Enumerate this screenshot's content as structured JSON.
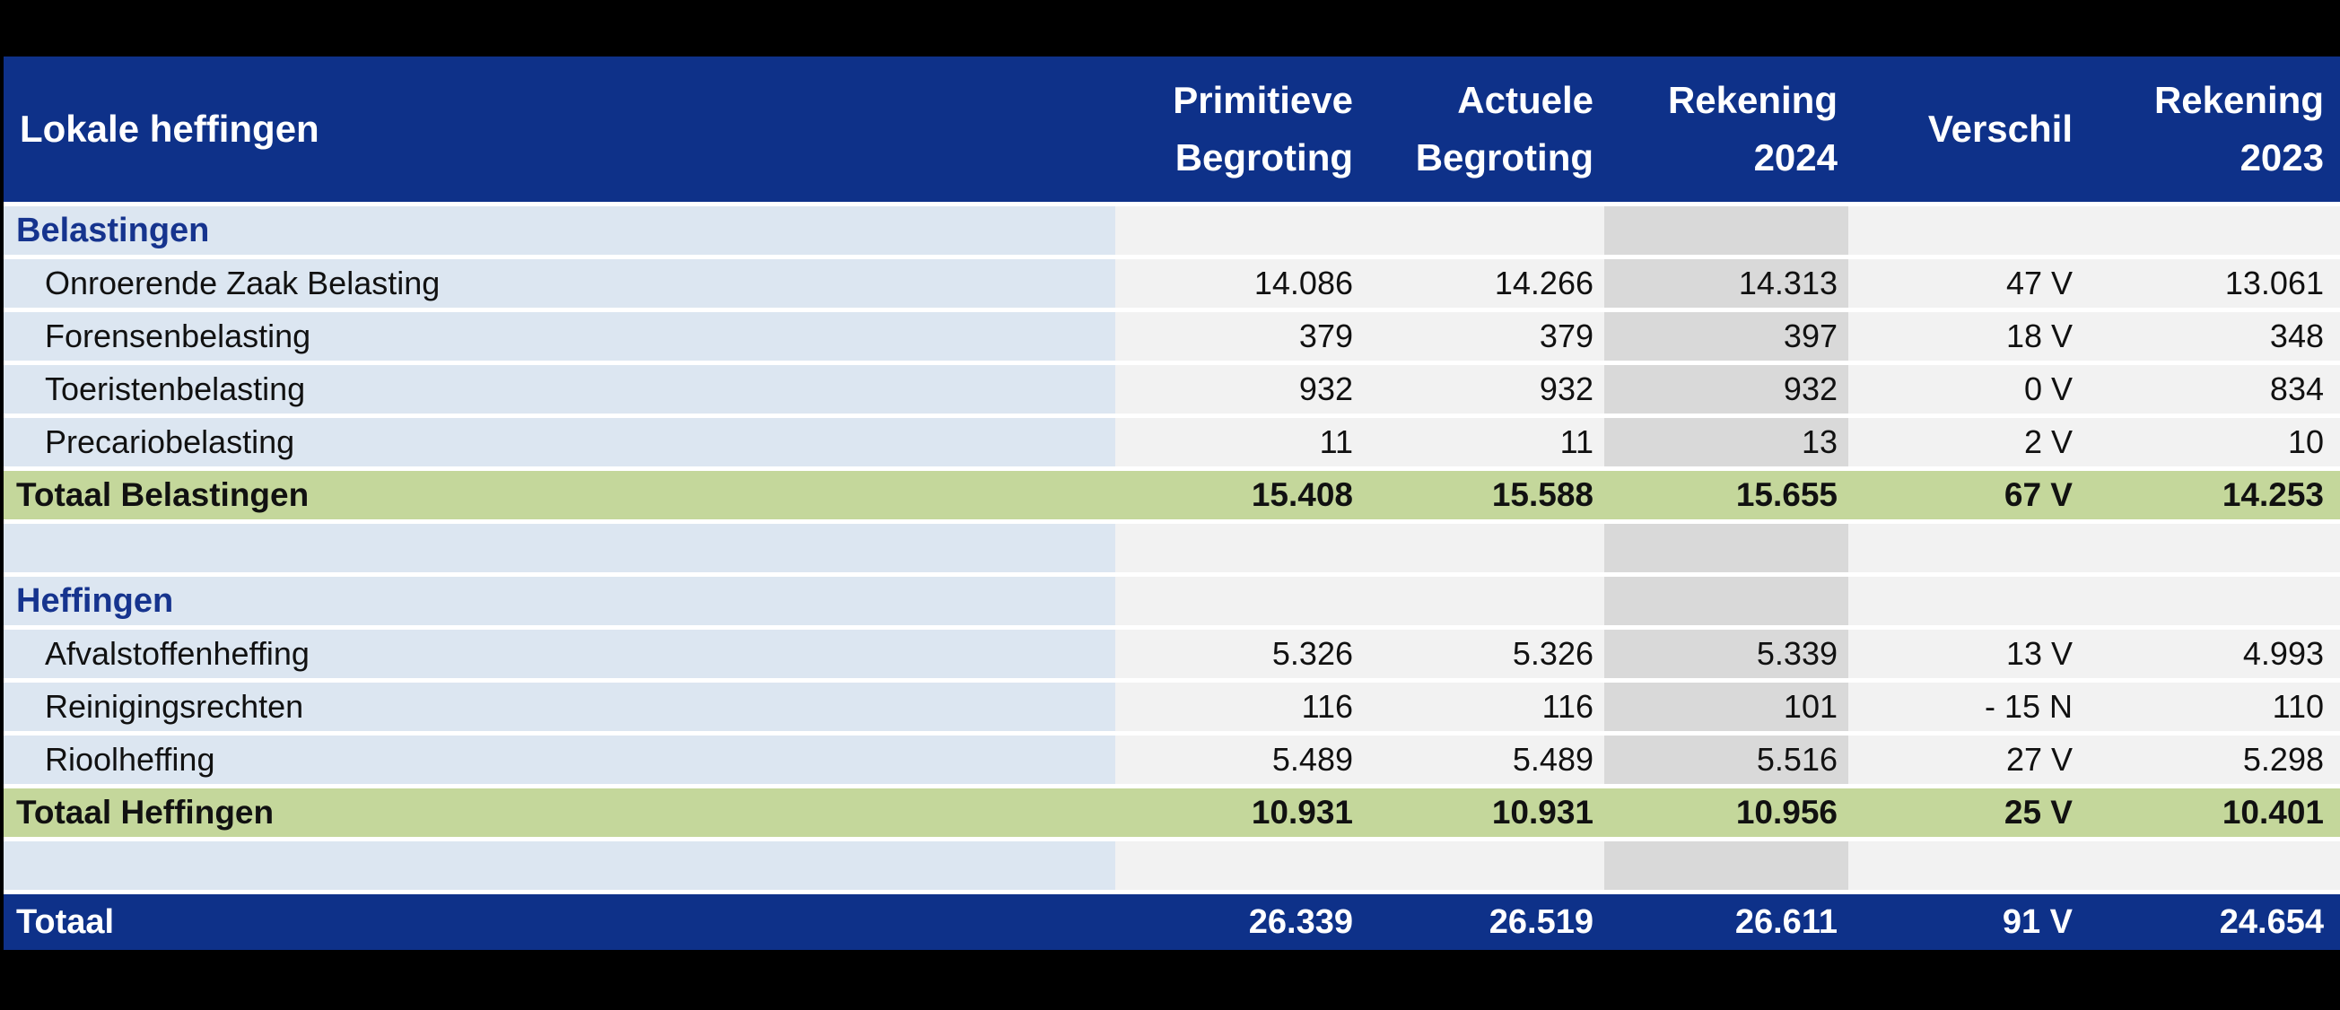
{
  "colors": {
    "header_blue": "#0e3189",
    "label_column_blue": "#dce6f1",
    "numeric_column_gray": "#f2f2f2",
    "rekening2024_column_gray": "#d9d9d9",
    "subtotal_green": "#c4d79b",
    "section_text_blue": "#16348e",
    "header_text": "#ffffff",
    "body_text": "#111111",
    "row_gap_white": "#ffffff",
    "canvas_black": "#000000"
  },
  "table": {
    "header": {
      "label": "Lokale heffingen",
      "columns": [
        {
          "line1": "Primitieve",
          "line2": "Begroting"
        },
        {
          "line1": "Actuele",
          "line2": "Begroting"
        },
        {
          "line1": "Rekening",
          "line2": "2024"
        },
        {
          "line1": "Verschil",
          "line2": ""
        },
        {
          "line1": "Rekening",
          "line2": "2023"
        }
      ]
    },
    "rows": [
      {
        "type": "section",
        "label": "Belastingen",
        "values": [
          "",
          "",
          "",
          "",
          ""
        ]
      },
      {
        "type": "item",
        "label": "Onroerende Zaak Belasting",
        "values": [
          "14.086",
          "14.266",
          "14.313",
          "47 V",
          "13.061"
        ]
      },
      {
        "type": "item",
        "label": "Forensenbelasting",
        "values": [
          "379",
          "379",
          "397",
          "18 V",
          "348"
        ]
      },
      {
        "type": "item",
        "label": "Toeristenbelasting",
        "values": [
          "932",
          "932",
          "932",
          "0 V",
          "834"
        ]
      },
      {
        "type": "item",
        "label": "Precariobelasting",
        "values": [
          "11",
          "11",
          "13",
          "2 V",
          "10"
        ]
      },
      {
        "type": "total",
        "label": "Totaal Belastingen",
        "values": [
          "15.408",
          "15.588",
          "15.655",
          "67 V",
          "14.253"
        ]
      },
      {
        "type": "spacer",
        "label": "",
        "values": [
          "",
          "",
          "",
          "",
          ""
        ]
      },
      {
        "type": "section",
        "label": "Heffingen",
        "values": [
          "",
          "",
          "",
          "",
          ""
        ]
      },
      {
        "type": "item",
        "label": "Afvalstoffenheffing",
        "values": [
          "5.326",
          "5.326",
          "5.339",
          "13 V",
          "4.993"
        ]
      },
      {
        "type": "item",
        "label": "Reinigingsrechten",
        "values": [
          "116",
          "116",
          "101",
          "- 15 N",
          "110"
        ]
      },
      {
        "type": "item",
        "label": "Rioolheffing",
        "values": [
          "5.489",
          "5.489",
          "5.516",
          "27 V",
          "5.298"
        ]
      },
      {
        "type": "total",
        "label": "Totaal Heffingen",
        "values": [
          "10.931",
          "10.931",
          "10.956",
          "25 V",
          "10.401"
        ]
      },
      {
        "type": "spacer",
        "label": "",
        "values": [
          "",
          "",
          "",
          "",
          ""
        ]
      },
      {
        "type": "grand",
        "label": "Totaal",
        "values": [
          "26.339",
          "26.519",
          "26.611",
          "91 V",
          "24.654"
        ]
      }
    ]
  },
  "chart_data": {
    "type": "table",
    "title": "Lokale heffingen",
    "columns": [
      "Lokale heffingen",
      "Primitieve Begroting",
      "Actuele Begroting",
      "Rekening 2024",
      "Verschil",
      "Rekening 2023"
    ],
    "rows": [
      [
        "Belastingen",
        "",
        "",
        "",
        "",
        ""
      ],
      [
        "Onroerende Zaak Belasting",
        "14.086",
        "14.266",
        "14.313",
        "47 V",
        "13.061"
      ],
      [
        "Forensenbelasting",
        "379",
        "379",
        "397",
        "18 V",
        "348"
      ],
      [
        "Toeristenbelasting",
        "932",
        "932",
        "932",
        "0 V",
        "834"
      ],
      [
        "Precariobelasting",
        "11",
        "11",
        "13",
        "2 V",
        "10"
      ],
      [
        "Totaal Belastingen",
        "15.408",
        "15.588",
        "15.655",
        "67 V",
        "14.253"
      ],
      [
        "",
        "",
        "",
        "",
        "",
        ""
      ],
      [
        "Heffingen",
        "",
        "",
        "",
        "",
        ""
      ],
      [
        "Afvalstoffenheffing",
        "5.326",
        "5.326",
        "5.339",
        "13 V",
        "4.993"
      ],
      [
        "Reinigingsrechten",
        "116",
        "116",
        "101",
        "- 15 N",
        "110"
      ],
      [
        "Rioolheffing",
        "5.489",
        "5.489",
        "5.516",
        "27 V",
        "5.298"
      ],
      [
        "Totaal Heffingen",
        "10.931",
        "10.931",
        "10.956",
        "25 V",
        "10.401"
      ],
      [
        "",
        "",
        "",
        "",
        "",
        ""
      ],
      [
        "Totaal",
        "26.339",
        "26.519",
        "26.611",
        "91 V",
        "24.654"
      ]
    ]
  }
}
